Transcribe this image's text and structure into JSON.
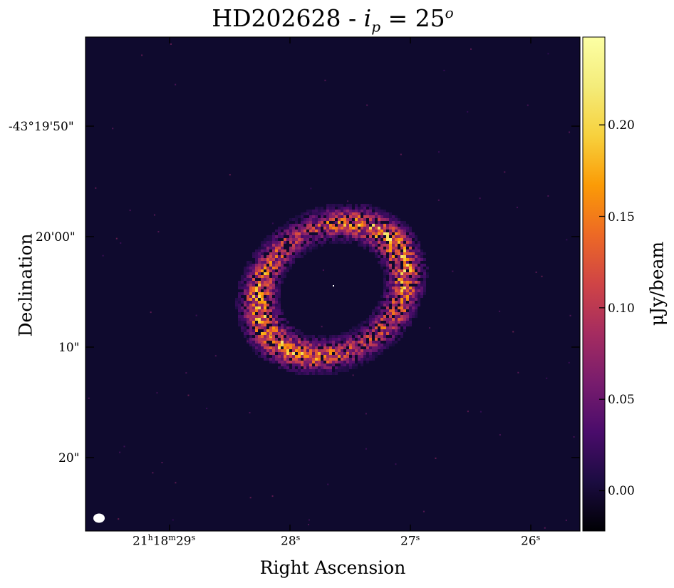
{
  "title": {
    "prefix": "HD202628 - ",
    "var": "i",
    "sub": "p",
    "eq": " = 25",
    "sup": "o"
  },
  "axes": {
    "x_label": "Right Ascension",
    "y_label": "Declination",
    "y_ticks": [
      "-43°19'50\"",
      "20'00\"",
      "10\"",
      "20\""
    ],
    "x_ticks": [
      {
        "h": "21",
        "hs": "h",
        "m": "18",
        "ms": "m",
        "s": "29",
        "ss": "s"
      },
      {
        "s": "28",
        "ss": "s"
      },
      {
        "s": "27",
        "ss": "s"
      },
      {
        "s": "26",
        "ss": "s"
      }
    ]
  },
  "colorbar": {
    "label": "μJy/beam",
    "ticks": [
      "0.20",
      "0.15",
      "0.10",
      "0.05",
      "0.00"
    ],
    "range": [
      -0.022,
      0.248
    ],
    "colormap": "inferno"
  },
  "image": {
    "background_color": "#0f0a2e",
    "beam_color": "#ffffff",
    "ring_inclination_deg": 25
  }
}
